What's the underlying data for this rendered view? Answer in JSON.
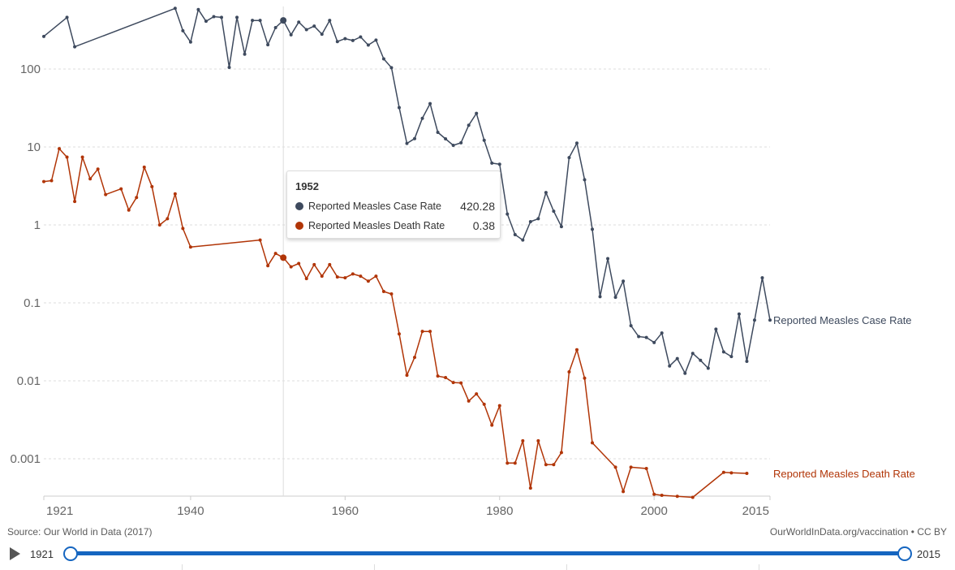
{
  "chart_data": {
    "type": "line",
    "title": "",
    "xlabel": "",
    "ylabel": "",
    "yscale": "log",
    "ylim": [
      0.0003,
      700
    ],
    "xlim": [
      1921,
      2015
    ],
    "y_ticks": [
      {
        "value": 100,
        "label": "100"
      },
      {
        "value": 10,
        "label": "10"
      },
      {
        "value": 1,
        "label": "1"
      },
      {
        "value": 0.1,
        "label": "0.1"
      },
      {
        "value": 0.01,
        "label": "0.01"
      },
      {
        "value": 0.001,
        "label": "0.001"
      }
    ],
    "x_ticks": [
      {
        "value": 1921,
        "label": "1921"
      },
      {
        "value": 1940,
        "label": "1940"
      },
      {
        "value": 1960,
        "label": "1960"
      },
      {
        "value": 1980,
        "label": "1980"
      },
      {
        "value": 2000,
        "label": "2000"
      },
      {
        "value": 2015,
        "label": "2015"
      }
    ],
    "hover_year": 1952,
    "series": [
      {
        "name": "Reported Measles Case Rate",
        "color": "#3e4a5e",
        "points": [
          [
            1921,
            262
          ],
          [
            1924,
            460
          ],
          [
            1925,
            193
          ],
          [
            1938,
            600
          ],
          [
            1939,
            310
          ],
          [
            1940,
            222
          ],
          [
            1941,
            580
          ],
          [
            1942,
            410
          ],
          [
            1943,
            470
          ],
          [
            1944,
            460
          ],
          [
            1945,
            105
          ],
          [
            1946,
            460
          ],
          [
            1947,
            155
          ],
          [
            1948,
            420
          ],
          [
            1949,
            420
          ],
          [
            1950,
            205
          ],
          [
            1951,
            340
          ],
          [
            1952,
            420.28
          ],
          [
            1953,
            275
          ],
          [
            1954,
            400
          ],
          [
            1955,
            320
          ],
          [
            1956,
            355
          ],
          [
            1957,
            280
          ],
          [
            1958,
            420
          ],
          [
            1959,
            225
          ],
          [
            1960,
            245
          ],
          [
            1961,
            232
          ],
          [
            1962,
            258
          ],
          [
            1963,
            203
          ],
          [
            1964,
            235
          ],
          [
            1965,
            135
          ],
          [
            1966,
            104
          ],
          [
            1967,
            32
          ],
          [
            1968,
            11.1
          ],
          [
            1969,
            12.8
          ],
          [
            1970,
            23.3
          ],
          [
            1971,
            36
          ],
          [
            1972,
            15.4
          ],
          [
            1973,
            12.7
          ],
          [
            1974,
            10.5
          ],
          [
            1975,
            11.3
          ],
          [
            1976,
            19
          ],
          [
            1977,
            27
          ],
          [
            1978,
            12.2
          ],
          [
            1979,
            6.2
          ],
          [
            1980,
            6.0
          ],
          [
            1981,
            1.38
          ],
          [
            1982,
            0.75
          ],
          [
            1983,
            0.64
          ],
          [
            1984,
            1.1
          ],
          [
            1985,
            1.2
          ],
          [
            1986,
            2.6
          ],
          [
            1987,
            1.5
          ],
          [
            1988,
            0.95
          ],
          [
            1989,
            7.3
          ],
          [
            1990,
            11.2
          ],
          [
            1991,
            3.8
          ],
          [
            1992,
            0.88
          ],
          [
            1993,
            0.12
          ],
          [
            1994,
            0.37
          ],
          [
            1995,
            0.118
          ],
          [
            1996,
            0.19
          ],
          [
            1997,
            0.051
          ],
          [
            1998,
            0.037
          ],
          [
            1999,
            0.036
          ],
          [
            2000,
            0.031
          ],
          [
            2001,
            0.041
          ],
          [
            2002,
            0.0155
          ],
          [
            2003,
            0.0193
          ],
          [
            2004,
            0.0125
          ],
          [
            2005,
            0.0225
          ],
          [
            2006,
            0.0183
          ],
          [
            2007,
            0.0145
          ],
          [
            2008,
            0.046
          ],
          [
            2009,
            0.0235
          ],
          [
            2010,
            0.0205
          ],
          [
            2011,
            0.072
          ],
          [
            2012,
            0.0178
          ],
          [
            2013,
            0.06
          ],
          [
            2014,
            0.21
          ],
          [
            2015,
            0.06
          ]
        ]
      },
      {
        "name": "Reported Measles Death Rate",
        "color": "#b13507",
        "points": [
          [
            1921,
            3.6
          ],
          [
            1922,
            3.7
          ],
          [
            1923,
            9.5
          ],
          [
            1924,
            7.4
          ],
          [
            1925,
            2.0
          ],
          [
            1926,
            7.4
          ],
          [
            1927,
            3.9
          ],
          [
            1928,
            5.2
          ],
          [
            1929,
            2.45
          ],
          [
            1931,
            2.9
          ],
          [
            1932,
            1.55
          ],
          [
            1933,
            2.25
          ],
          [
            1934,
            5.5
          ],
          [
            1935,
            3.1
          ],
          [
            1936,
            1.0
          ],
          [
            1937,
            1.2
          ],
          [
            1938,
            2.5
          ],
          [
            1939,
            0.9
          ],
          [
            1940,
            0.52
          ],
          [
            1949,
            0.64
          ],
          [
            1950,
            0.3
          ],
          [
            1951,
            0.43
          ],
          [
            1952,
            0.38
          ],
          [
            1953,
            0.29
          ],
          [
            1954,
            0.32
          ],
          [
            1955,
            0.205
          ],
          [
            1956,
            0.31
          ],
          [
            1957,
            0.22
          ],
          [
            1958,
            0.31
          ],
          [
            1959,
            0.215
          ],
          [
            1960,
            0.21
          ],
          [
            1961,
            0.235
          ],
          [
            1962,
            0.22
          ],
          [
            1963,
            0.19
          ],
          [
            1964,
            0.22
          ],
          [
            1965,
            0.14
          ],
          [
            1966,
            0.13
          ],
          [
            1967,
            0.04
          ],
          [
            1968,
            0.0118
          ],
          [
            1969,
            0.02
          ],
          [
            1970,
            0.043
          ],
          [
            1971,
            0.043
          ],
          [
            1972,
            0.0115
          ],
          [
            1973,
            0.011
          ],
          [
            1974,
            0.0095
          ],
          [
            1975,
            0.0094
          ],
          [
            1976,
            0.0055
          ],
          [
            1977,
            0.0068
          ],
          [
            1978,
            0.005
          ],
          [
            1979,
            0.0027
          ],
          [
            1980,
            0.0048
          ],
          [
            1981,
            0.00088
          ],
          [
            1982,
            0.00088
          ],
          [
            1983,
            0.0017
          ],
          [
            1984,
            0.00042
          ],
          [
            1985,
            0.0017
          ],
          [
            1986,
            0.00084
          ],
          [
            1987,
            0.00084
          ],
          [
            1988,
            0.0012
          ],
          [
            1989,
            0.013
          ],
          [
            1990,
            0.025
          ],
          [
            1991,
            0.0108
          ],
          [
            1992,
            0.0016
          ],
          [
            1995,
            0.00078
          ],
          [
            1996,
            0.00038
          ],
          [
            1997,
            0.00078
          ],
          [
            1999,
            0.00075
          ],
          [
            2000,
            0.00035
          ],
          [
            2001,
            0.00034
          ],
          [
            2003,
            0.00033
          ],
          [
            2005,
            0.00032
          ],
          [
            2009,
            0.00067
          ],
          [
            2010,
            0.00066
          ],
          [
            2012,
            0.00065
          ]
        ]
      }
    ]
  },
  "tooltip": {
    "year": "1952",
    "rows": [
      {
        "label": "Reported Measles Case Rate",
        "value": "420.28",
        "color": "#3e4a5e"
      },
      {
        "label": "Reported Measles Death Rate",
        "value": "0.38",
        "color": "#b13507"
      }
    ]
  },
  "end_labels": {
    "case": "Reported Measles Case Rate",
    "death": "Reported Measles Death Rate"
  },
  "footer": {
    "source": "Source: Our World in Data (2017)",
    "url": "OurWorldInData.org/vaccination • CC BY"
  },
  "timeline": {
    "start_year": "1921",
    "end_year": "2015",
    "start_value": 1921,
    "end_value": 2015
  }
}
